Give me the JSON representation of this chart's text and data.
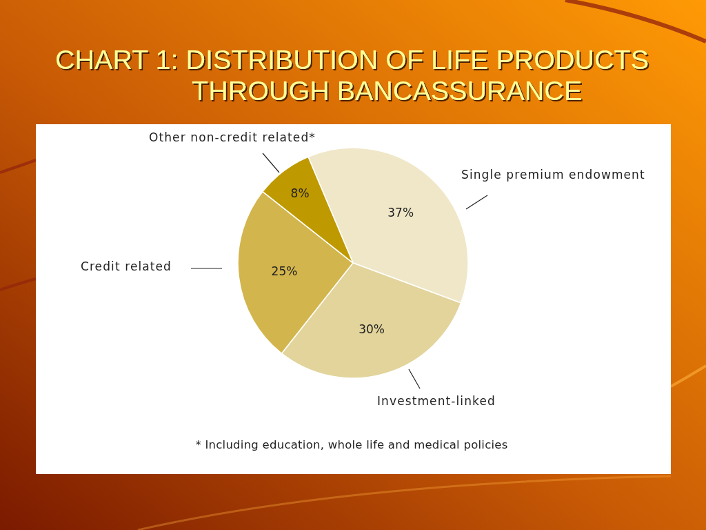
{
  "chart_data": {
    "type": "pie",
    "title": "CHART 1: DISTRIBUTION OF LIFE PRODUCTS\nTHROUGH BANCASSURANCE",
    "categories": [
      "Single premium endowment",
      "Investment-linked",
      "Credit related",
      "Other non-credit related*"
    ],
    "values": [
      37,
      30,
      25,
      8
    ],
    "colors": [
      "#efe7c8",
      "#e2d49b",
      "#d3b54d",
      "#bf9900"
    ],
    "value_labels": [
      "37%",
      "30%",
      "25%",
      "8%"
    ],
    "annotations": [
      "* Including education, whole life and medical policies"
    ]
  }
}
